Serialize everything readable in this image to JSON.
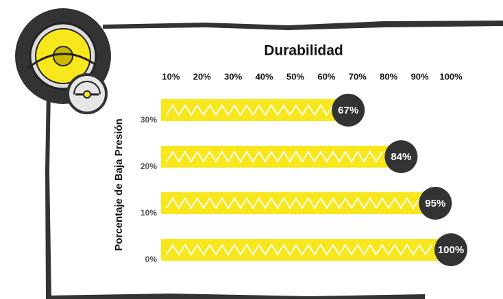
{
  "chart_data": {
    "type": "bar",
    "orientation": "horizontal",
    "title": "Durabilidad",
    "y_label": "Porcentaje de Baja Presión",
    "categories": [
      "30%",
      "20%",
      "10%",
      "0%"
    ],
    "values": [
      67,
      84,
      95,
      100
    ],
    "value_labels": [
      "67%",
      "84%",
      "95%",
      "100%"
    ],
    "color": "#f8e71c",
    "label_color": "#333333",
    "xlim": [
      0,
      100
    ],
    "xticks": [
      {
        "value": 10,
        "label": "10%"
      },
      {
        "value": 20,
        "label": "20%"
      },
      {
        "value": 30,
        "label": "30%"
      },
      {
        "value": 40,
        "label": "40%"
      },
      {
        "value": 50,
        "label": "50%"
      },
      {
        "value": 60,
        "label": "60%"
      },
      {
        "value": 70,
        "label": "70%"
      },
      {
        "value": 80,
        "label": "80%"
      },
      {
        "value": 90,
        "label": "90%"
      },
      {
        "value": 100,
        "label": "100%"
      }
    ],
    "grid": false
  }
}
